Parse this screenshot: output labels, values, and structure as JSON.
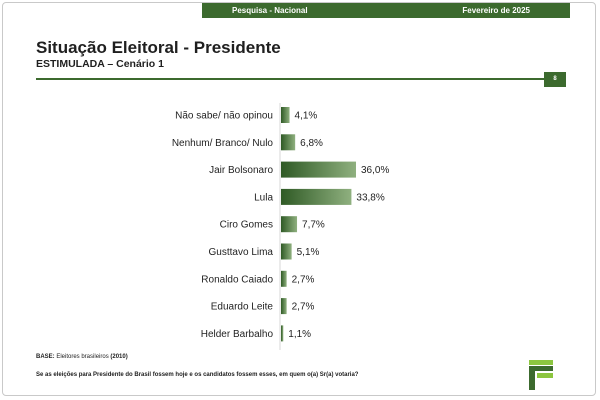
{
  "header": {
    "left": "Pesquisa - Nacional",
    "right": "Fevereiro de 2025"
  },
  "page": {
    "title": "Situação Eleitoral - Presidente",
    "subtitle": "ESTIMULADA – Cenário 1",
    "page_number": "8"
  },
  "footer": {
    "base_label": "BASE:",
    "base_text": " Eleitores brasileiros ",
    "base_year": "(2010)",
    "question": "Se as eleições para Presidente do Brasil fossem hoje e os candidatos fossem esses, em quem o(a) Sr(a) votaria?"
  },
  "colors": {
    "accent": "#3c6a2e",
    "bar_dark": "#2f5a25",
    "bar_light": "#8fb07f",
    "logo_green": "#8cc63f"
  },
  "chart_data": {
    "type": "bar",
    "orientation": "horizontal",
    "title": "Situação Eleitoral - Presidente",
    "subtitle": "ESTIMULADA – Cenário 1",
    "categories": [
      "Não sabe/ não opinou",
      "Nenhum/ Branco/ Nulo",
      "Jair Bolsonaro",
      "Lula",
      "Ciro Gomes",
      "Gusttavo Lima",
      "Ronaldo Caiado",
      "Eduardo Leite",
      "Helder Barbalho"
    ],
    "values": [
      4.1,
      6.8,
      36.0,
      33.8,
      7.7,
      5.1,
      2.7,
      2.7,
      1.1
    ],
    "data_labels": [
      "4,1%",
      "6,8%",
      "36,0%",
      "33,8%",
      "7,7%",
      "5,1%",
      "2,7%",
      "2,7%",
      "1,1%"
    ],
    "xlim": [
      0,
      36
    ],
    "grid": false,
    "legend": "none"
  }
}
